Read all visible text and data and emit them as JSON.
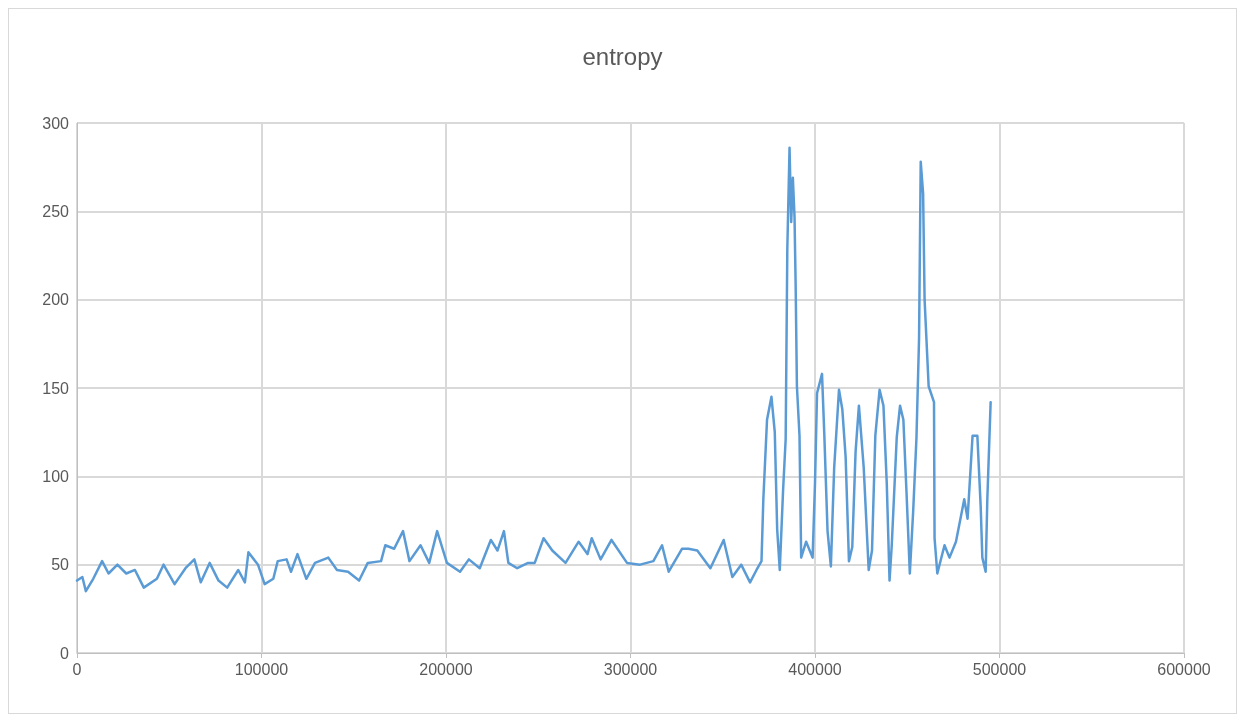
{
  "chart_data": {
    "type": "line",
    "title": "entropy",
    "xlim": [
      0,
      600000
    ],
    "xticks": [
      0,
      100000,
      200000,
      300000,
      400000,
      500000,
      600000
    ],
    "ylim": [
      0,
      300
    ],
    "yticks": [
      0,
      50,
      100,
      150,
      200,
      250,
      300
    ],
    "grid": true,
    "marker": "none",
    "line_style": "solid",
    "x": [
      0,
      2900,
      4800,
      8800,
      13600,
      17100,
      21900,
      26700,
      31400,
      36200,
      43300,
      46900,
      52900,
      58800,
      63600,
      67100,
      71900,
      76700,
      81400,
      87400,
      91000,
      92900,
      98100,
      101700,
      106400,
      108800,
      113600,
      116000,
      119500,
      124300,
      129000,
      136200,
      140900,
      146900,
      152900,
      157600,
      164800,
      167100,
      171900,
      176700,
      180200,
      186200,
      190900,
      195200,
      200500,
      207600,
      212400,
      218300,
      224300,
      227900,
      231400,
      233800,
      238600,
      244500,
      248100,
      252900,
      257600,
      264800,
      271900,
      276700,
      279000,
      283800,
      289700,
      298100,
      305200,
      312400,
      317100,
      320700,
      327900,
      331400,
      336200,
      343300,
      350500,
      355200,
      360000,
      364800,
      368300,
      371000,
      372000,
      374000,
      376400,
      378200,
      379500,
      380900,
      382700,
      384100,
      384500,
      385000,
      386200,
      387100,
      388000,
      388900,
      389500,
      390200,
      391600,
      392500,
      395200,
      398700,
      400000,
      401100,
      403800,
      405000,
      406800,
      408600,
      410400,
      413000,
      414800,
      416600,
      418400,
      420200,
      422000,
      423800,
      426400,
      429100,
      430900,
      432700,
      435000,
      437100,
      438900,
      440400,
      441600,
      444300,
      446100,
      447900,
      449600,
      451400,
      453200,
      455000,
      456400,
      457300,
      458600,
      459400,
      461600,
      464500,
      464800,
      466300,
      470200,
      472900,
      476400,
      480900,
      482700,
      485400,
      488000,
      489800,
      490700,
      492500,
      493400,
      495200
    ],
    "series": [
      {
        "color": "#5b9bd5",
        "values": [
          41,
          43,
          35,
          42,
          52,
          45,
          50,
          45,
          47,
          37,
          42,
          50,
          39,
          48,
          53,
          40,
          51,
          41,
          37,
          47,
          40,
          57,
          50,
          39,
          42,
          52,
          53,
          46,
          56,
          42,
          51,
          54,
          47,
          46,
          41,
          51,
          52,
          61,
          59,
          69,
          52,
          61,
          51,
          69,
          51,
          46,
          53,
          48,
          64,
          58,
          69,
          51,
          48,
          51,
          51,
          65,
          58,
          51,
          63,
          56,
          65,
          53,
          64,
          51,
          50,
          52,
          61,
          46,
          59,
          59,
          58,
          48,
          64,
          43,
          50,
          40,
          47,
          52,
          87,
          132,
          145,
          125,
          70,
          47,
          92,
          121,
          169,
          229,
          286,
          244,
          269,
          247,
          209,
          151,
          123,
          54,
          63,
          54,
          96,
          147,
          158,
          125,
          69,
          49,
          105,
          149,
          138,
          111,
          52,
          60,
          114,
          140,
          105,
          47,
          58,
          123,
          149,
          140,
          96,
          41,
          61,
          122,
          140,
          132,
          91,
          45,
          80,
          122,
          178,
          278,
          260,
          200,
          151,
          142,
          65,
          45,
          61,
          54,
          63,
          87,
          76,
          123,
          123,
          83,
          54,
          46,
          87,
          142
        ]
      }
    ]
  }
}
